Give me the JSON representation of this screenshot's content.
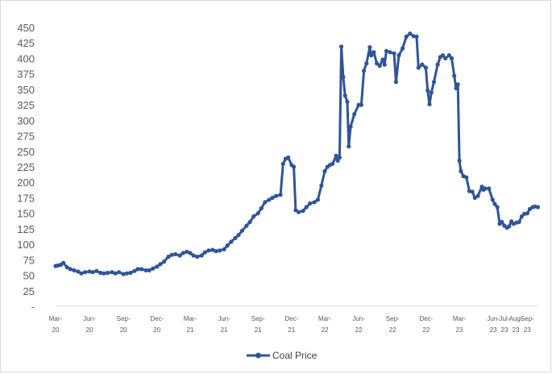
{
  "chart_data": {
    "type": "line",
    "title": "",
    "xlabel": "",
    "ylabel": "",
    "ylim": [
      0,
      450
    ],
    "y_ticks": [
      "-",
      "25",
      "50",
      "75",
      "100",
      "125",
      "150",
      "175",
      "200",
      "225",
      "250",
      "275",
      "300",
      "325",
      "350",
      "375",
      "400",
      "425",
      "450"
    ],
    "x_ticks": [
      {
        "month": "Mar-",
        "year": "20",
        "date": "2020-03"
      },
      {
        "month": "Jun-",
        "year": "20",
        "date": "2020-06"
      },
      {
        "month": "Sep-",
        "year": "20",
        "date": "2020-09"
      },
      {
        "month": "Dec-",
        "year": "20",
        "date": "2020-12"
      },
      {
        "month": "Mar-",
        "year": "21",
        "date": "2021-03"
      },
      {
        "month": "Jun-",
        "year": "21",
        "date": "2021-06"
      },
      {
        "month": "Sep-",
        "year": "21",
        "date": "2021-09"
      },
      {
        "month": "Dec-",
        "year": "21",
        "date": "2021-12"
      },
      {
        "month": "Mar-",
        "year": "22",
        "date": "2022-03"
      },
      {
        "month": "Jun-",
        "year": "22",
        "date": "2022-06"
      },
      {
        "month": "Sep-",
        "year": "22",
        "date": "2022-09"
      },
      {
        "month": "Dec-",
        "year": "22",
        "date": "2022-12"
      },
      {
        "month": "Mar-",
        "year": "23",
        "date": "2023-03"
      },
      {
        "month": "Jun-",
        "year": "23",
        "date": "2023-06"
      },
      {
        "month": "Jul-",
        "year": "23",
        "date": "2023-07"
      },
      {
        "month": "Aug-",
        "year": "23",
        "date": "2023-08"
      },
      {
        "month": "Sep-",
        "year": "23",
        "date": "2023-09"
      }
    ],
    "grid": false,
    "legend_position": "bottom",
    "series": [
      {
        "name": "Coal Price",
        "color": "#2f5597",
        "points": [
          [
            "2020-03-01",
            65
          ],
          [
            "2020-03-08",
            66
          ],
          [
            "2020-03-15",
            67
          ],
          [
            "2020-03-22",
            70
          ],
          [
            "2020-04-01",
            63
          ],
          [
            "2020-04-10",
            60
          ],
          [
            "2020-04-20",
            58
          ],
          [
            "2020-05-01",
            56
          ],
          [
            "2020-05-10",
            53
          ],
          [
            "2020-05-20",
            55
          ],
          [
            "2020-06-01",
            56
          ],
          [
            "2020-06-10",
            55
          ],
          [
            "2020-06-20",
            57
          ],
          [
            "2020-07-01",
            54
          ],
          [
            "2020-07-10",
            53
          ],
          [
            "2020-07-20",
            54
          ],
          [
            "2020-08-01",
            55
          ],
          [
            "2020-08-10",
            53
          ],
          [
            "2020-08-20",
            55
          ],
          [
            "2020-09-01",
            52
          ],
          [
            "2020-09-10",
            53
          ],
          [
            "2020-09-20",
            54
          ],
          [
            "2020-10-01",
            57
          ],
          [
            "2020-10-10",
            60
          ],
          [
            "2020-10-20",
            60
          ],
          [
            "2020-11-01",
            58
          ],
          [
            "2020-11-10",
            58
          ],
          [
            "2020-11-20",
            61
          ],
          [
            "2020-12-01",
            64
          ],
          [
            "2020-12-10",
            68
          ],
          [
            "2020-12-20",
            72
          ],
          [
            "2021-01-01",
            80
          ],
          [
            "2021-01-10",
            83
          ],
          [
            "2021-01-20",
            84
          ],
          [
            "2021-02-01",
            82
          ],
          [
            "2021-02-10",
            86
          ],
          [
            "2021-02-20",
            88
          ],
          [
            "2021-03-01",
            86
          ],
          [
            "2021-03-10",
            82
          ],
          [
            "2021-03-20",
            80
          ],
          [
            "2021-04-01",
            82
          ],
          [
            "2021-04-10",
            87
          ],
          [
            "2021-04-20",
            90
          ],
          [
            "2021-05-01",
            91
          ],
          [
            "2021-05-10",
            89
          ],
          [
            "2021-05-20",
            90
          ],
          [
            "2021-06-01",
            92
          ],
          [
            "2021-06-10",
            98
          ],
          [
            "2021-06-20",
            104
          ],
          [
            "2021-07-01",
            110
          ],
          [
            "2021-07-10",
            115
          ],
          [
            "2021-07-20",
            122
          ],
          [
            "2021-08-01",
            130
          ],
          [
            "2021-08-10",
            136
          ],
          [
            "2021-08-20",
            145
          ],
          [
            "2021-09-01",
            150
          ],
          [
            "2021-09-10",
            158
          ],
          [
            "2021-09-20",
            168
          ],
          [
            "2021-10-01",
            172
          ],
          [
            "2021-10-10",
            175
          ],
          [
            "2021-10-20",
            178
          ],
          [
            "2021-11-01",
            180
          ],
          [
            "2021-11-08",
            230
          ],
          [
            "2021-11-15",
            238
          ],
          [
            "2021-11-22",
            240
          ],
          [
            "2021-12-01",
            228
          ],
          [
            "2021-12-07",
            225
          ],
          [
            "2021-12-12",
            155
          ],
          [
            "2021-12-20",
            152
          ],
          [
            "2022-01-01",
            154
          ],
          [
            "2022-01-10",
            160
          ],
          [
            "2022-01-20",
            166
          ],
          [
            "2022-02-01",
            168
          ],
          [
            "2022-02-10",
            172
          ],
          [
            "2022-02-20",
            195
          ],
          [
            "2022-03-01",
            218
          ],
          [
            "2022-03-08",
            225
          ],
          [
            "2022-03-15",
            228
          ],
          [
            "2022-03-22",
            230
          ],
          [
            "2022-04-01",
            243
          ],
          [
            "2022-04-05",
            235
          ],
          [
            "2022-04-10",
            240
          ],
          [
            "2022-04-15",
            419
          ],
          [
            "2022-04-20",
            370
          ],
          [
            "2022-04-25",
            340
          ],
          [
            "2022-05-01",
            330
          ],
          [
            "2022-05-05",
            258
          ],
          [
            "2022-05-10",
            290
          ],
          [
            "2022-05-20",
            310
          ],
          [
            "2022-06-01",
            325
          ],
          [
            "2022-06-08",
            325
          ],
          [
            "2022-06-15",
            380
          ],
          [
            "2022-06-22",
            392
          ],
          [
            "2022-07-01",
            418
          ],
          [
            "2022-07-05",
            405
          ],
          [
            "2022-07-12",
            410
          ],
          [
            "2022-07-20",
            392
          ],
          [
            "2022-07-28",
            388
          ],
          [
            "2022-08-05",
            398
          ],
          [
            "2022-08-10",
            390
          ],
          [
            "2022-08-15",
            412
          ],
          [
            "2022-08-25",
            410
          ],
          [
            "2022-09-05",
            408
          ],
          [
            "2022-09-10",
            362
          ],
          [
            "2022-09-18",
            405
          ],
          [
            "2022-09-28",
            416
          ],
          [
            "2022-10-08",
            435
          ],
          [
            "2022-10-18",
            440
          ],
          [
            "2022-10-28",
            436
          ],
          [
            "2022-11-05",
            435
          ],
          [
            "2022-11-10",
            385
          ],
          [
            "2022-11-20",
            390
          ],
          [
            "2022-11-30",
            385
          ],
          [
            "2022-12-05",
            348
          ],
          [
            "2022-12-10",
            326
          ],
          [
            "2022-12-15",
            345
          ],
          [
            "2022-12-22",
            362
          ],
          [
            "2023-01-01",
            390
          ],
          [
            "2023-01-08",
            402
          ],
          [
            "2023-01-15",
            405
          ],
          [
            "2023-01-22",
            400
          ],
          [
            "2023-02-01",
            405
          ],
          [
            "2023-02-08",
            400
          ],
          [
            "2023-02-15",
            372
          ],
          [
            "2023-02-20",
            352
          ],
          [
            "2023-02-25",
            358
          ],
          [
            "2023-03-01",
            235
          ],
          [
            "2023-03-05",
            218
          ],
          [
            "2023-03-12",
            210
          ],
          [
            "2023-03-20",
            208
          ],
          [
            "2023-03-28",
            186
          ],
          [
            "2023-04-05",
            185
          ],
          [
            "2023-04-12",
            175
          ],
          [
            "2023-04-20",
            178
          ],
          [
            "2023-05-01",
            193
          ],
          [
            "2023-05-05",
            188
          ],
          [
            "2023-05-10",
            190
          ],
          [
            "2023-05-20",
            190
          ],
          [
            "2023-05-30",
            172
          ],
          [
            "2023-06-05",
            165
          ],
          [
            "2023-06-12",
            160
          ],
          [
            "2023-06-18",
            133
          ],
          [
            "2023-06-24",
            136
          ],
          [
            "2023-07-01",
            130
          ],
          [
            "2023-07-08",
            127
          ],
          [
            "2023-07-14",
            129
          ],
          [
            "2023-07-20",
            137
          ],
          [
            "2023-07-26",
            133
          ],
          [
            "2023-08-03",
            135
          ],
          [
            "2023-08-10",
            136
          ],
          [
            "2023-08-17",
            145
          ],
          [
            "2023-08-24",
            149
          ],
          [
            "2023-09-01",
            150
          ],
          [
            "2023-09-08",
            157
          ],
          [
            "2023-09-16",
            160
          ],
          [
            "2023-09-22",
            161
          ],
          [
            "2023-09-30",
            160
          ]
        ]
      }
    ]
  }
}
